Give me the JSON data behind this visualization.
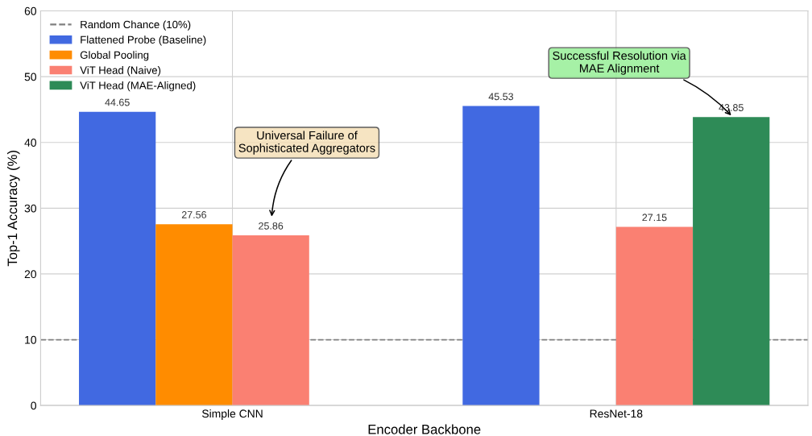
{
  "chart_data": {
    "type": "bar",
    "xlabel": "Encoder Backbone",
    "ylabel": "Top-1 Accuracy (%)",
    "categories": [
      "Simple CNN",
      "ResNet-18"
    ],
    "series": [
      {
        "name": "Flattened Probe (Baseline)",
        "color": "#4169e1",
        "values": [
          44.65,
          45.53
        ]
      },
      {
        "name": "Global Pooling",
        "color": "#ff8c00",
        "values": [
          27.56,
          null
        ]
      },
      {
        "name": "ViT Head (Naive)",
        "color": "#fa8072",
        "values": [
          25.86,
          27.15
        ]
      },
      {
        "name": "ViT Head (MAE-Aligned)",
        "color": "#2e8b57",
        "values": [
          null,
          43.85
        ]
      }
    ],
    "ylim": [
      0,
      60
    ],
    "yticks": [
      0,
      10,
      20,
      30,
      40,
      50,
      60
    ],
    "grid": true,
    "legend": "top left",
    "data_labels": true,
    "ref_lines": [
      {
        "axis": "y",
        "value": 10,
        "label": "Random Chance (10%)",
        "color": "#808080",
        "line_style": "dashed"
      }
    ],
    "annotations": [
      "Universal Failure of\nSophisticated Aggregators",
      "Successful Resolution via\nMAE Alignment"
    ]
  }
}
